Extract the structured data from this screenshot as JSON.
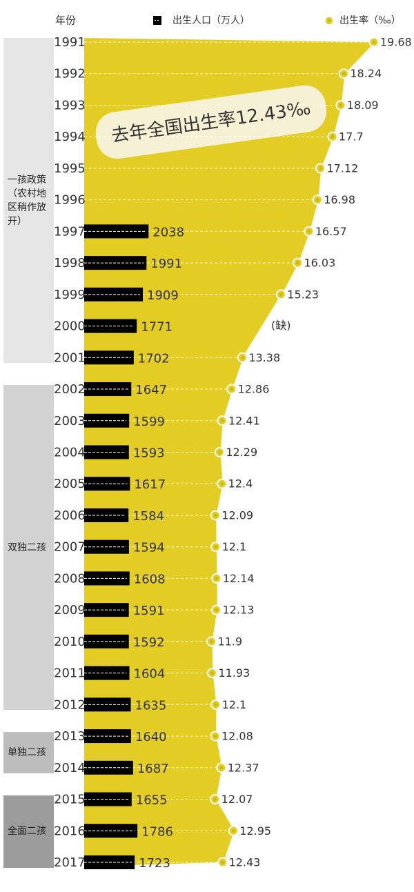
{
  "chart_data": {
    "type": "bar-and-rate",
    "annotation": "去年全国出生率12.43‰",
    "category_label": "年份",
    "categories": [
      "1991",
      "1992",
      "1993",
      "1994",
      "1995",
      "1996",
      "1997",
      "1998",
      "1999",
      "2000",
      "2001",
      "2002",
      "2003",
      "2004",
      "2005",
      "2006",
      "2007",
      "2008",
      "2009",
      "2010",
      "2011",
      "2012",
      "2013",
      "2014",
      "2015",
      "2016",
      "2017"
    ],
    "series": [
      {
        "name": "出生人口（万人）",
        "color": "#000000",
        "values": [
          null,
          null,
          null,
          null,
          null,
          null,
          2038,
          1991,
          1909,
          1771,
          1702,
          1647,
          1599,
          1593,
          1617,
          1584,
          1594,
          1608,
          1591,
          1592,
          1604,
          1635,
          1640,
          1687,
          1655,
          1786,
          1723
        ]
      },
      {
        "name": "出生率（‰）",
        "color": "#e3cd25",
        "axis": "x2",
        "values": [
          19.68,
          18.24,
          18.09,
          17.7,
          17.12,
          16.98,
          16.57,
          16.03,
          15.23,
          null,
          13.38,
          12.86,
          12.41,
          12.29,
          12.4,
          12.09,
          12.1,
          12.14,
          12.13,
          11.9,
          11.93,
          12.1,
          12.08,
          12.37,
          12.07,
          12.95,
          12.43
        ],
        "missing_label": "(缺)"
      }
    ],
    "xlim": [
      580,
      8050
    ],
    "x2lim": [
      5.8,
      21.6
    ],
    "groups": [
      {
        "label": "一孩政策（农村地区稍作放开）",
        "first": "1991",
        "last": "2001",
        "color": "#e6e6e6"
      },
      {
        "label": "双独二孩",
        "first": "2002",
        "last": "2012",
        "color": "#d2d2d2"
      },
      {
        "label": "单独二孩",
        "first": "2013",
        "last": "2014",
        "color": "#bdbdbd"
      },
      {
        "label": "全面二孩",
        "first": "2015",
        "last": "2017",
        "color": "#9c9c9c"
      }
    ]
  }
}
